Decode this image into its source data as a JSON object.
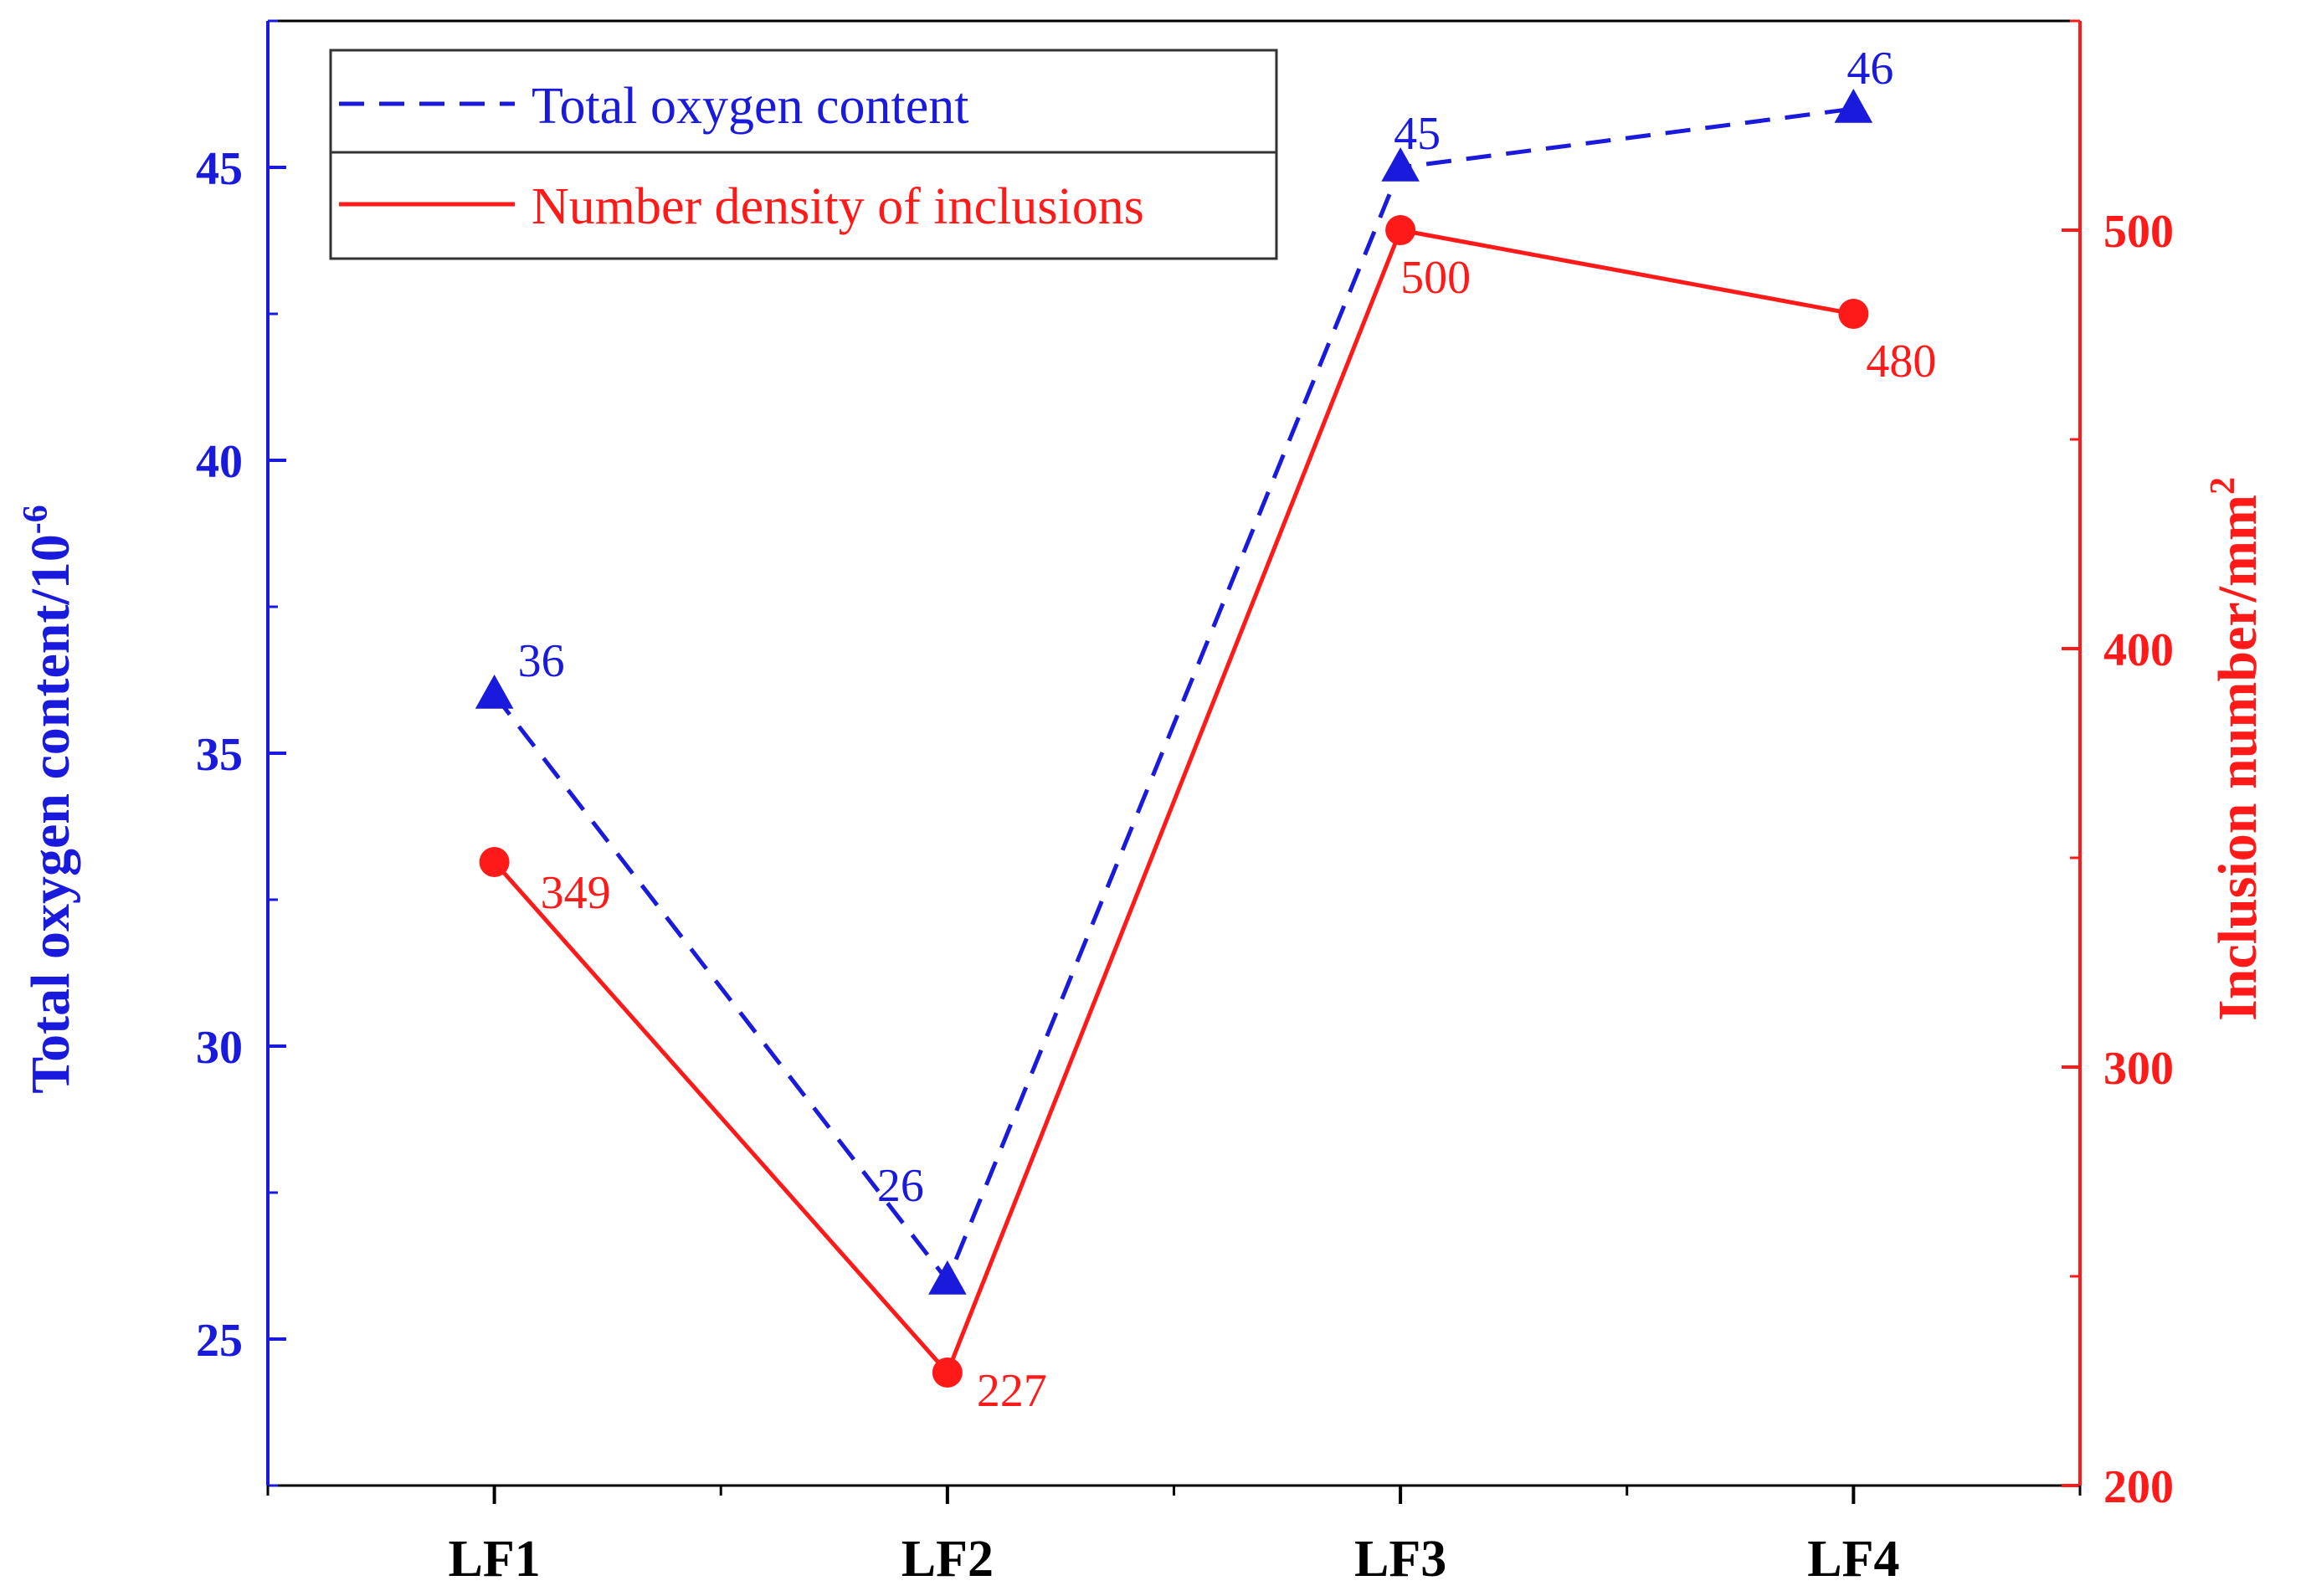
{
  "chart_data": {
    "type": "line",
    "categories": [
      "LF1",
      "LF2",
      "LF3",
      "LF4"
    ],
    "series": [
      {
        "name": "Total oxygen content",
        "axis": "left",
        "values": [
          36,
          26,
          45,
          46
        ],
        "labels": [
          "36",
          "26",
          "45",
          "46"
        ],
        "color": "#1a1adc",
        "line_style": "dashed",
        "marker": "triangle"
      },
      {
        "name": "Number density of inclusions",
        "axis": "right",
        "values": [
          349,
          227,
          500,
          480
        ],
        "labels": [
          "349",
          "227",
          "500",
          "480"
        ],
        "color": "#ff1a1a",
        "line_style": "solid",
        "marker": "circle"
      }
    ],
    "y_left": {
      "label": "Total oxygen content/10",
      "label_sup": "-6",
      "range": [
        22.5,
        47.5
      ],
      "ticks": [
        25,
        30,
        35,
        40,
        45
      ],
      "tick_labels": [
        "25",
        "30",
        "35",
        "40",
        "45"
      ],
      "color": "#1a1adc"
    },
    "y_right": {
      "label": "Inclusion number/mm",
      "label_sup": "2",
      "range": [
        200,
        550
      ],
      "ticks": [
        200,
        300,
        400,
        500
      ],
      "tick_labels": [
        "200",
        "300",
        "400",
        "500"
      ],
      "color": "#ff1a1a"
    },
    "x_range": [
      0.5,
      4.5
    ],
    "legend_position": "top-left",
    "grid": false
  }
}
